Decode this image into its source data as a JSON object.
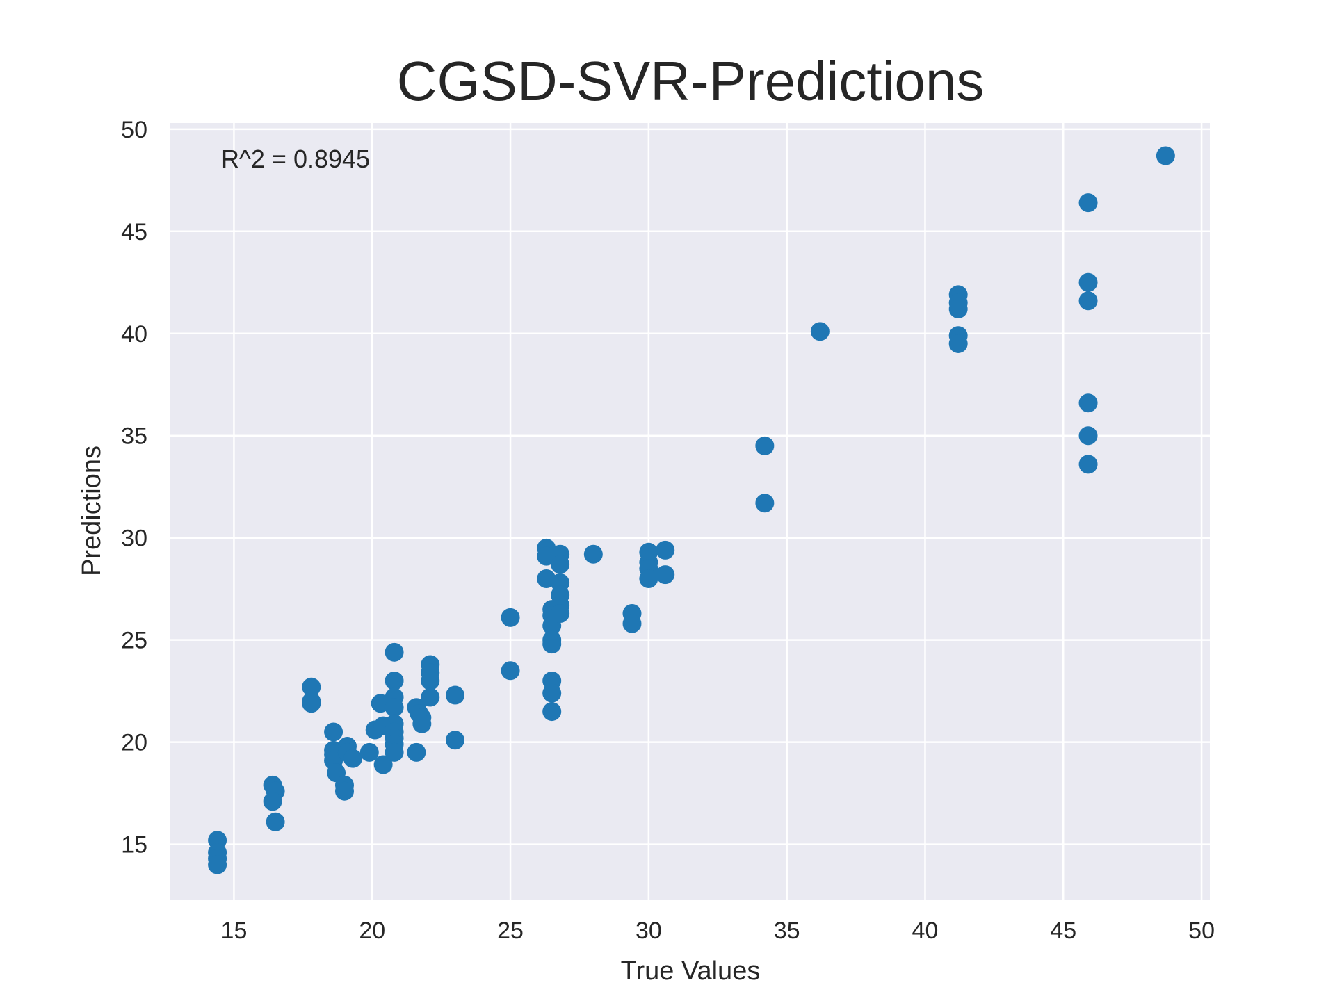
{
  "chart_data": {
    "type": "scatter",
    "title": "CGSD-SVR-Predictions",
    "xlabel": "True Values",
    "ylabel": "Predictions",
    "annotation": "R^2 = 0.8945",
    "xlim": [
      12.7,
      50.3
    ],
    "ylim": [
      12.3,
      50.3
    ],
    "xticks": [
      15,
      20,
      25,
      30,
      35,
      40,
      45,
      50
    ],
    "yticks": [
      15,
      20,
      25,
      30,
      35,
      40,
      45,
      50
    ],
    "grid": true,
    "colors": {
      "background": "#eaeaf2",
      "grid": "#ffffff",
      "points": "#1f77b4",
      "text": "#262626"
    },
    "series": [
      {
        "points": [
          [
            14.4,
            15.2
          ],
          [
            14.4,
            14.6
          ],
          [
            14.4,
            14.3
          ],
          [
            14.4,
            14.0
          ],
          [
            16.4,
            17.9
          ],
          [
            16.5,
            17.6
          ],
          [
            16.4,
            17.1
          ],
          [
            16.5,
            16.1
          ],
          [
            17.8,
            22.7
          ],
          [
            17.8,
            21.9
          ],
          [
            17.8,
            22.0
          ],
          [
            18.6,
            20.5
          ],
          [
            18.6,
            19.6
          ],
          [
            18.6,
            19.4
          ],
          [
            18.6,
            19.1
          ],
          [
            18.7,
            18.5
          ],
          [
            19.1,
            19.8
          ],
          [
            19.1,
            19.5
          ],
          [
            19.3,
            19.2
          ],
          [
            19.0,
            17.9
          ],
          [
            19.0,
            17.6
          ],
          [
            19.9,
            19.5
          ],
          [
            20.1,
            20.6
          ],
          [
            20.3,
            21.9
          ],
          [
            20.4,
            20.8
          ],
          [
            20.4,
            18.9
          ],
          [
            20.8,
            24.4
          ],
          [
            20.8,
            23.0
          ],
          [
            20.8,
            22.2
          ],
          [
            20.8,
            21.7
          ],
          [
            20.8,
            20.9
          ],
          [
            20.8,
            20.5
          ],
          [
            20.8,
            20.2
          ],
          [
            20.8,
            19.9
          ],
          [
            20.8,
            19.5
          ],
          [
            21.6,
            21.7
          ],
          [
            21.7,
            21.4
          ],
          [
            21.8,
            21.2
          ],
          [
            21.8,
            20.9
          ],
          [
            21.6,
            19.5
          ],
          [
            22.1,
            23.8
          ],
          [
            22.1,
            23.4
          ],
          [
            22.1,
            23.0
          ],
          [
            22.1,
            22.2
          ],
          [
            23.0,
            22.3
          ],
          [
            23.0,
            20.1
          ],
          [
            25.0,
            26.1
          ],
          [
            25.0,
            23.5
          ],
          [
            26.3,
            29.5
          ],
          [
            26.3,
            29.1
          ],
          [
            26.3,
            28.0
          ],
          [
            26.5,
            26.5
          ],
          [
            26.5,
            26.2
          ],
          [
            26.5,
            25.7
          ],
          [
            26.5,
            25.0
          ],
          [
            26.5,
            24.8
          ],
          [
            26.5,
            23.0
          ],
          [
            26.5,
            22.4
          ],
          [
            26.5,
            21.5
          ],
          [
            26.8,
            29.2
          ],
          [
            26.8,
            28.7
          ],
          [
            26.8,
            27.8
          ],
          [
            26.8,
            27.2
          ],
          [
            26.8,
            26.7
          ],
          [
            26.8,
            26.3
          ],
          [
            28.0,
            29.2
          ],
          [
            29.4,
            26.3
          ],
          [
            29.4,
            25.8
          ],
          [
            30.0,
            29.3
          ],
          [
            30.0,
            28.8
          ],
          [
            30.0,
            28.5
          ],
          [
            30.0,
            28.0
          ],
          [
            30.6,
            29.4
          ],
          [
            30.6,
            28.2
          ],
          [
            34.2,
            34.5
          ],
          [
            34.2,
            31.7
          ],
          [
            36.2,
            40.1
          ],
          [
            41.2,
            41.9
          ],
          [
            41.2,
            41.5
          ],
          [
            41.2,
            41.2
          ],
          [
            41.2,
            39.9
          ],
          [
            41.2,
            39.5
          ],
          [
            45.9,
            46.4
          ],
          [
            45.9,
            42.5
          ],
          [
            45.9,
            41.6
          ],
          [
            45.9,
            36.6
          ],
          [
            45.9,
            35.0
          ],
          [
            45.9,
            33.6
          ],
          [
            48.7,
            48.7
          ]
        ]
      }
    ]
  }
}
